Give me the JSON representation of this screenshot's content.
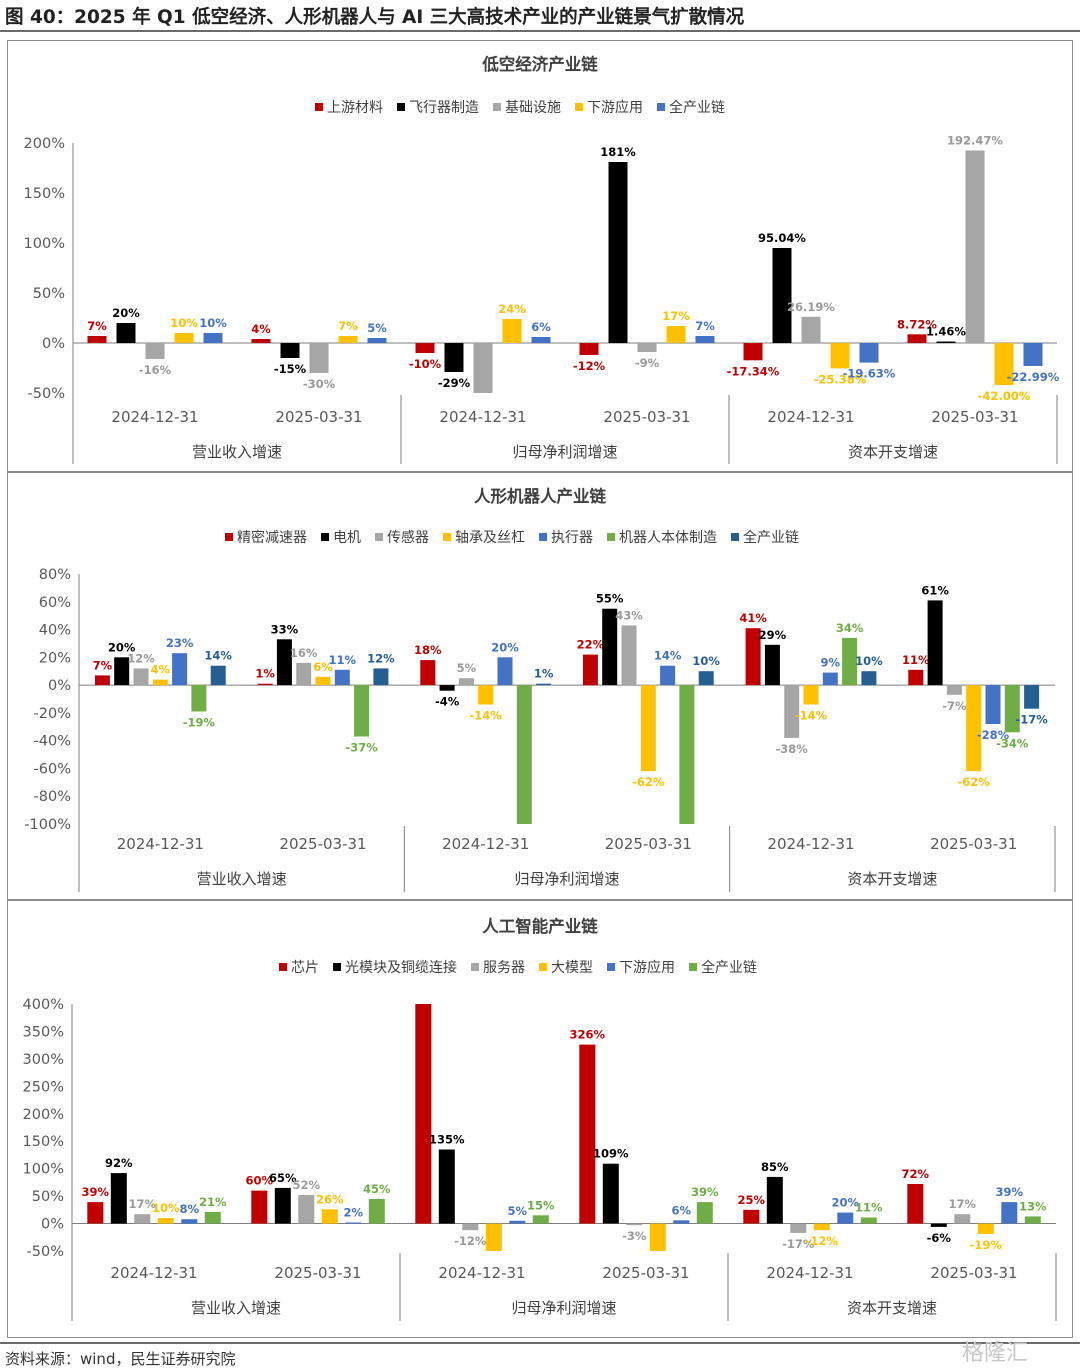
{
  "figure_title": "图 40：2025 年 Q1 低空经济、人形机器人与 AI 三大高技术产业的产业链景气扩散情况",
  "source": "资料来源：wind，民生证券研究院",
  "watermark": "格隆汇",
  "chart_data": [
    {
      "type": "bar",
      "title": "低空经济产业链",
      "ylim": [
        -50,
        200
      ],
      "yticks": [
        -50,
        0,
        50,
        100,
        150,
        200
      ],
      "groups": [
        "营业收入增速",
        "归母净利润增速",
        "资本开支增速"
      ],
      "categories": [
        "2024-12-31",
        "2025-03-31",
        "2024-12-31",
        "2025-03-31",
        "2024-12-31",
        "2025-03-31"
      ],
      "series": [
        {
          "name": "上游材料",
          "color": "#c00000",
          "values": [
            7,
            4,
            -10,
            -12,
            -17.34,
            8.72
          ],
          "labels": [
            "7%",
            "4%",
            "-10%",
            "-12%",
            "-17.34%",
            "8.72%"
          ]
        },
        {
          "name": "飞行器制造",
          "color": "#000000",
          "values": [
            20,
            -15,
            -29,
            181,
            95.04,
            1.46
          ],
          "labels": [
            "20%",
            "-15%",
            "-29%",
            "181%",
            "95.04%",
            "1.46%"
          ]
        },
        {
          "name": "基础设施",
          "color": "#a6a6a6",
          "values": [
            -16,
            -30,
            -50,
            -9,
            26.19,
            192.47
          ],
          "labels": [
            "-16%",
            "-30%",
            "",
            "-9%",
            "26.19%",
            "192.47%"
          ]
        },
        {
          "name": "下游应用",
          "color": "#ffc000",
          "values": [
            10,
            7,
            24,
            17,
            -25.38,
            -42.0
          ],
          "labels": [
            "10%",
            "7%",
            "24%",
            "17%",
            "-25.38%",
            "-42.00%"
          ]
        },
        {
          "name": "全产业链",
          "color": "#4472c4",
          "values": [
            10,
            5,
            6,
            7,
            -19.63,
            -22.99
          ],
          "labels": [
            "10%",
            "5%",
            "6%",
            "7%",
            "-19.63%",
            "-22.99%"
          ]
        }
      ]
    },
    {
      "type": "bar",
      "title": "人形机器人产业链",
      "ylim": [
        -100,
        80
      ],
      "yticks": [
        -100,
        -80,
        -60,
        -40,
        -20,
        0,
        20,
        40,
        60,
        80
      ],
      "groups": [
        "营业收入增速",
        "归母净利润增速",
        "资本开支增速"
      ],
      "categories": [
        "2024-12-31",
        "2025-03-31",
        "2024-12-31",
        "2025-03-31",
        "2024-12-31",
        "2025-03-31"
      ],
      "series": [
        {
          "name": "精密减速器",
          "color": "#c00000",
          "values": [
            7,
            1,
            18,
            22,
            41,
            11
          ],
          "labels": [
            "7%",
            "1%",
            "18%",
            "22%",
            "41%",
            "11%"
          ]
        },
        {
          "name": "电机",
          "color": "#000000",
          "values": [
            20,
            33,
            -4,
            55,
            29,
            61
          ],
          "labels": [
            "20%",
            "33%",
            "-4%",
            "55%",
            "29%",
            "61%"
          ]
        },
        {
          "name": "传感器",
          "color": "#a6a6a6",
          "values": [
            12,
            16,
            5,
            43,
            -38,
            -7
          ],
          "labels": [
            "12%",
            "16%",
            "5%",
            "43%",
            "-38%",
            "-7%"
          ]
        },
        {
          "name": "轴承及丝杠",
          "color": "#ffc000",
          "values": [
            4,
            6,
            -14,
            -62,
            -14,
            -62
          ],
          "labels": [
            "4%",
            "6%",
            "-14%",
            "-62%",
            "-14%",
            "-62%"
          ]
        },
        {
          "name": "执行器",
          "color": "#4472c4",
          "values": [
            23,
            11,
            20,
            14,
            9,
            -28
          ],
          "labels": [
            "23%",
            "11%",
            "20%",
            "14%",
            "9%",
            "-28%"
          ]
        },
        {
          "name": "机器人本体制造",
          "color": "#70ad47",
          "values": [
            -19,
            -37,
            -100,
            -100,
            34,
            -34
          ],
          "labels": [
            "-19%",
            "-37%",
            "",
            "",
            "34%",
            "-34%"
          ]
        },
        {
          "name": "全产业链",
          "color": "#255e91",
          "values": [
            14,
            12,
            1,
            10,
            10,
            -17
          ],
          "labels": [
            "14%",
            "12%",
            "1%",
            "10%",
            "10%",
            "-17%"
          ]
        }
      ]
    },
    {
      "type": "bar",
      "title": "人工智能产业链",
      "ylim": [
        -50,
        400
      ],
      "yticks": [
        -50,
        0,
        50,
        100,
        150,
        200,
        250,
        300,
        350,
        400
      ],
      "groups": [
        "营业收入增速",
        "归母净利润增速",
        "资本开支增速"
      ],
      "categories": [
        "2024-12-31",
        "2025-03-31",
        "2024-12-31",
        "2025-03-31",
        "2024-12-31",
        "2025-03-31"
      ],
      "series": [
        {
          "name": "芯片",
          "color": "#c00000",
          "values": [
            39,
            60,
            400,
            326,
            25,
            72
          ],
          "labels": [
            "39%",
            "60%",
            "",
            "326%",
            "25%",
            "72%"
          ]
        },
        {
          "name": "光模块及铜缆连接",
          "color": "#000000",
          "values": [
            92,
            65,
            135,
            109,
            85,
            -6
          ],
          "labels": [
            "92%",
            "65%",
            "135%",
            "109%",
            "85%",
            "-6%"
          ]
        },
        {
          "name": "服务器",
          "color": "#a6a6a6",
          "values": [
            17,
            52,
            -12,
            -3,
            -17,
            17
          ],
          "labels": [
            "17%",
            "52%",
            "-12%",
            "-3%",
            "-17%",
            "17%"
          ]
        },
        {
          "name": "大模型",
          "color": "#ffc000",
          "values": [
            10,
            26,
            -50,
            -50,
            -12,
            -19
          ],
          "labels": [
            "10%",
            "26%",
            "",
            "",
            "-12%",
            "-19%"
          ]
        },
        {
          "name": "下游应用",
          "color": "#4472c4",
          "values": [
            8,
            2,
            5,
            6,
            20,
            39
          ],
          "labels": [
            "8%",
            "2%",
            "5%",
            "6%",
            "20%",
            "39%"
          ]
        },
        {
          "name": "全产业链",
          "color": "#70ad47",
          "values": [
            21,
            45,
            15,
            39,
            11,
            13
          ],
          "labels": [
            "21%",
            "45%",
            "15%",
            "39%",
            "11%",
            "13%"
          ]
        }
      ]
    }
  ]
}
